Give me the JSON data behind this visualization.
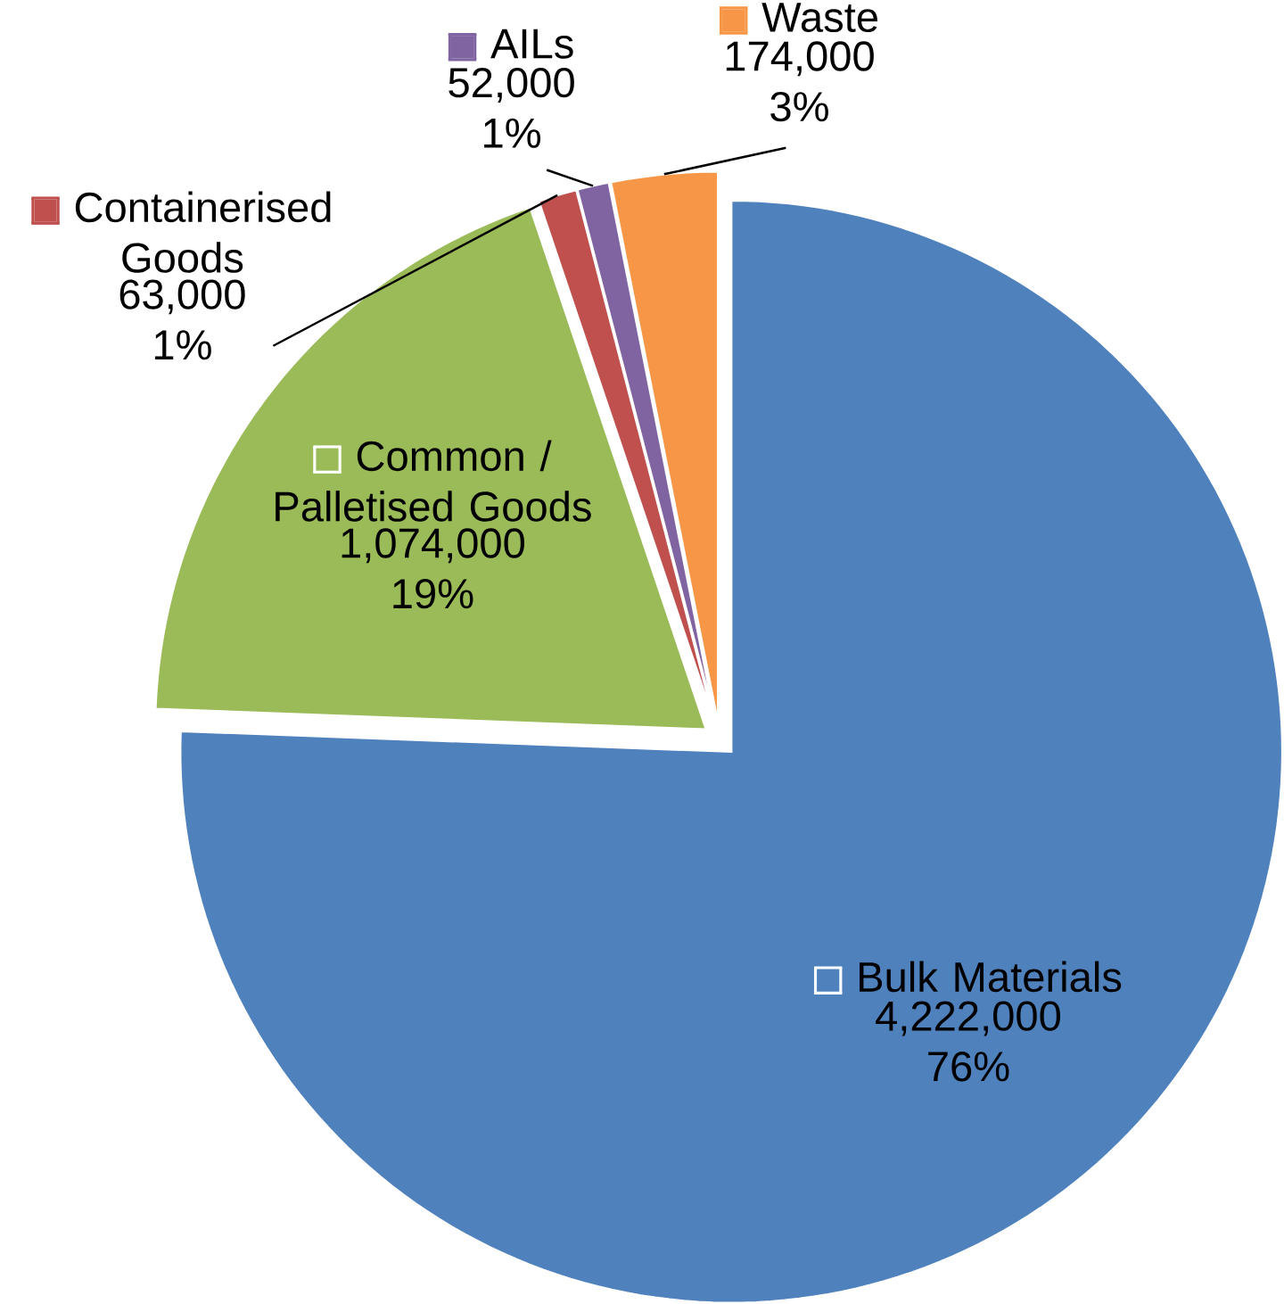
{
  "chart_data": {
    "type": "pie",
    "categories": [
      "Bulk Materials",
      "Common / Palletised Goods",
      "Containerised Goods",
      "AILs",
      "Waste"
    ],
    "values": [
      4222000,
      1074000,
      63000,
      52000,
      174000
    ],
    "colors": [
      "#4f81bd",
      "#9bbb59",
      "#c0504d",
      "#8064a2",
      "#f79646"
    ],
    "value_labels": [
      "4,222,000 76%",
      "1,074,000 19%",
      "63,000 1%",
      "52,000 1%",
      "174,000 3%"
    ],
    "legend": "top"
  }
}
